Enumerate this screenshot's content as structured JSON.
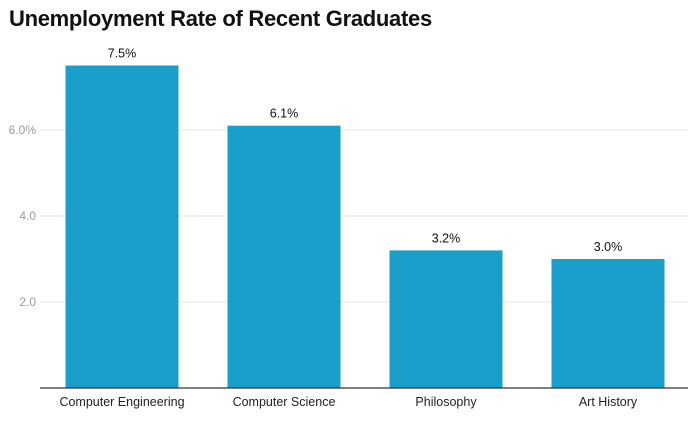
{
  "chart_data": {
    "type": "bar",
    "title": "Unemployment Rate of Recent Graduates",
    "xlabel": "",
    "ylabel": "",
    "categories": [
      "Computer Engineering",
      "Computer Science",
      "Philosophy",
      "Art History"
    ],
    "values": [
      7.5,
      6.1,
      3.2,
      3.0
    ],
    "data_labels": [
      "7.5%",
      "6.1%",
      "3.2%",
      "3.0%"
    ],
    "yticks": [
      {
        "value": 2,
        "label": "2.0"
      },
      {
        "value": 4,
        "label": "4.0"
      },
      {
        "value": 6,
        "label": "6.0%"
      }
    ],
    "ylim": [
      0,
      8
    ],
    "grid": true,
    "legend": "none",
    "bar_color": "#1a9fcb",
    "grid_color": "#e6e6e6",
    "axis_color": "#333333"
  }
}
